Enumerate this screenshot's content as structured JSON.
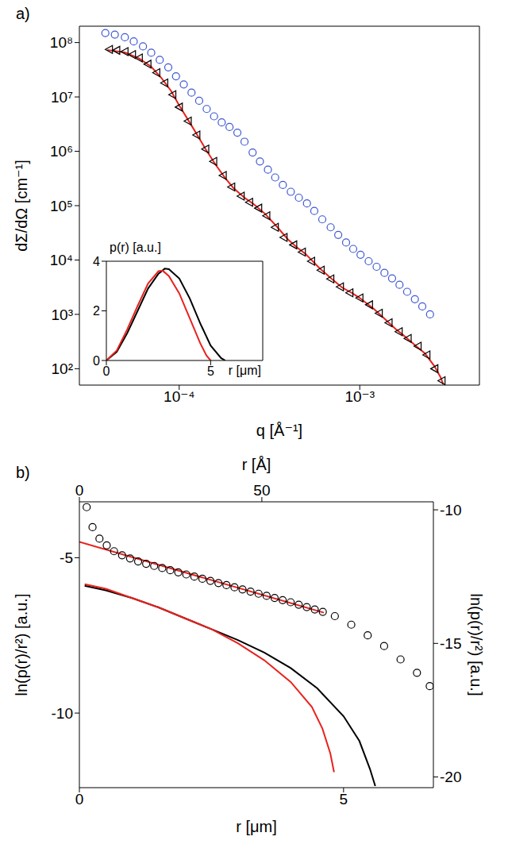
{
  "chart_data": [
    {
      "type": "scatter",
      "title": "a)",
      "xlabel": "q [Å⁻¹]",
      "ylabel": "dΣ/dΩ [cm⁻¹]",
      "log": true,
      "xlim": [
        2.8e-05,
        0.0046
      ],
      "xticks": [
        {
          "value": 0.0001,
          "label": "10⁻⁴"
        },
        {
          "value": 0.001,
          "label": "10⁻³"
        }
      ],
      "ylim": [
        50,
        200000000
      ],
      "yticks": [
        {
          "value": 100,
          "label": "10²"
        },
        {
          "value": 1000,
          "label": "10³"
        },
        {
          "value": 10000,
          "label": "10⁴"
        },
        {
          "value": 100000,
          "label": "10⁵"
        },
        {
          "value": 1000000,
          "label": "10⁶"
        },
        {
          "value": 10000000,
          "label": "10⁷"
        },
        {
          "value": 100000000,
          "label": "10⁸"
        }
      ],
      "series": [
        {
          "type": "scatter",
          "color": "#000000",
          "marker": "triangle-left",
          "x": [
            4.1e-05,
            4.5e-05,
            5e-05,
            5.5e-05,
            6e-05,
            6.7e-05,
            7.5e-05,
            8.3e-05,
            9.2e-05,
            0.0001,
            0.000112,
            0.000125,
            0.00014,
            0.000155,
            0.000175,
            0.000195,
            0.00022,
            0.000245,
            0.000275,
            0.000305,
            0.00034,
            0.00038,
            0.00043,
            0.00048,
            0.00054,
            0.00061,
            0.00069,
            0.00078,
            0.00088,
            0.001,
            0.00113,
            0.00128,
            0.00145,
            0.00165,
            0.00185,
            0.0021,
            0.00235,
            0.0026,
            0.00285
          ],
          "values": [
            75000000,
            72000000,
            68000000,
            60000000,
            52000000,
            40000000,
            28000000,
            18000000,
            11000000,
            6500000,
            3600000,
            2000000,
            1100000,
            650000,
            360000,
            220000,
            150000,
            115000,
            90000,
            65000,
            40000,
            26000,
            19000,
            14000,
            9500,
            6500,
            4500,
            3200,
            2500,
            2000,
            1500,
            1050,
            700,
            480,
            360,
            260,
            180,
            100,
            60
          ]
        },
        {
          "type": "line",
          "color": "#e8221e",
          "line_style": "solid",
          "x": [
            4e-05,
            5e-05,
            6e-05,
            7e-05,
            8e-05,
            9e-05,
            0.0001,
            0.00012,
            0.00014,
            0.00016,
            0.00018,
            0.0002,
            0.00023,
            0.00026,
            0.0003,
            0.00035,
            0.0004,
            0.00045,
            0.0005,
            0.0006,
            0.0007,
            0.0008,
            0.0009,
            0.001,
            0.0012,
            0.0014,
            0.0016,
            0.0018,
            0.002,
            0.0023,
            0.0026,
            0.0028,
            0.0029
          ],
          "values": [
            73000000,
            66000000,
            51000000,
            36000000,
            22000000,
            13000000,
            7000000,
            2600000,
            1100000,
            550000,
            320000,
            210000,
            140000,
            105000,
            70000,
            40000,
            24000,
            17000,
            13000,
            7000,
            4500,
            3100,
            2500,
            2000,
            1250,
            780,
            520,
            380,
            280,
            190,
            110,
            70,
            52
          ]
        },
        {
          "type": "scatter",
          "color": "#3d56d4",
          "marker": "circle",
          "x": [
            3.9e-05,
            4.4e-05,
            5e-05,
            5.6e-05,
            6.3e-05,
            7e-05,
            7.8e-05,
            8.7e-05,
            9.6e-05,
            0.000106,
            0.000117,
            0.000129,
            0.000142,
            0.000156,
            0.000172,
            0.00019,
            0.00021,
            0.00023,
            0.000255,
            0.00028,
            0.00031,
            0.00034,
            0.000375,
            0.000415,
            0.00046,
            0.00051,
            0.00056,
            0.00062,
            0.00069,
            0.00076,
            0.00084,
            0.00092,
            0.00101,
            0.00112,
            0.00124,
            0.00137,
            0.00151,
            0.00166,
            0.00183,
            0.00202,
            0.00222,
            0.00245
          ],
          "values": [
            150000000,
            140000000,
            125000000,
            105000000,
            85000000,
            65000000,
            48000000,
            35000000,
            24000000,
            17000000,
            12000000,
            8500000,
            6000000,
            4400000,
            3400000,
            2800000,
            2200000,
            1500000,
            950000,
            650000,
            460000,
            330000,
            240000,
            180000,
            140000,
            110000,
            80000,
            56000,
            40000,
            29000,
            21000,
            16000,
            12500,
            9500,
            7500,
            5800,
            4600,
            3500,
            2600,
            1900,
            1400,
            1000
          ]
        }
      ]
    },
    {
      "type": "line",
      "xlabel": "r [μm]",
      "ylabel": "p(r) [a.u.]",
      "xlim": [
        0,
        7.5
      ],
      "xticks": [
        0,
        5
      ],
      "ylim": [
        0,
        4
      ],
      "yticks": [
        0,
        2,
        4
      ],
      "series": [
        {
          "type": "line",
          "color": "#000000",
          "line_style": "solid",
          "x": [
            0,
            0.5,
            1,
            1.5,
            2,
            2.5,
            2.8,
            3,
            3.5,
            4,
            4.5,
            5,
            5.5,
            5.7
          ],
          "values": [
            0,
            0.35,
            1.1,
            2.0,
            2.9,
            3.5,
            3.7,
            3.68,
            3.3,
            2.5,
            1.5,
            0.6,
            0.1,
            0
          ]
        },
        {
          "type": "line",
          "color": "#e8221e",
          "line_style": "solid",
          "x": [
            0,
            0.5,
            1,
            1.5,
            2,
            2.5,
            2.7,
            3,
            3.5,
            4,
            4.5,
            4.8,
            5
          ],
          "values": [
            0,
            0.4,
            1.25,
            2.2,
            3.1,
            3.6,
            3.62,
            3.4,
            2.7,
            1.7,
            0.7,
            0.2,
            0
          ]
        }
      ]
    },
    {
      "type": "line",
      "title": "b)",
      "xlabel": "r [μm]",
      "ylabel": "ln(p(r)/r²) [a.u.]",
      "x2label": "r [Å]",
      "y2label": "ln(p(r)/r²) [a.u.]",
      "xlim": [
        0,
        6.7
      ],
      "xticks": [
        0,
        5
      ],
      "ylim": [
        -12.4,
        -3.2
      ],
      "yticks": [
        -5,
        -10
      ],
      "x2lim": [
        0,
        97
      ],
      "x2ticks": [
        0,
        50
      ],
      "y2lim": [
        -20.4,
        -9.7
      ],
      "y2ticks": [
        -10,
        -15,
        -20
      ],
      "series": [
        {
          "type": "line",
          "color": "#000000",
          "line_style": "solid",
          "x": [
            0.1,
            0.5,
            1,
            1.5,
            2,
            2.5,
            3,
            3.5,
            4,
            4.5,
            5,
            5.3,
            5.5,
            5.6
          ],
          "values": [
            -5.9,
            -6.05,
            -6.3,
            -6.6,
            -6.95,
            -7.3,
            -7.65,
            -8.05,
            -8.55,
            -9.2,
            -10.1,
            -10.9,
            -11.8,
            -12.35
          ]
        },
        {
          "type": "line",
          "color": "#e8221e",
          "line_style": "solid",
          "x": [
            0.1,
            0.5,
            1,
            1.5,
            2,
            2.5,
            3,
            3.5,
            4,
            4.4,
            4.6,
            4.75,
            4.82
          ],
          "values": [
            -5.85,
            -6.0,
            -6.3,
            -6.6,
            -6.95,
            -7.3,
            -7.75,
            -8.3,
            -9.0,
            -9.8,
            -10.5,
            -11.3,
            -11.9
          ]
        },
        {
          "type": "scatter",
          "color": "#000000",
          "marker": "circle",
          "axis": "y2",
          "x": [
            2.0,
            3.6,
            5.5,
            7.5,
            9.5,
            11.7,
            13.9,
            16.1,
            18.3,
            20.5,
            22.7,
            24.9,
            27.1,
            29.3,
            31.5,
            33.7,
            35.9,
            38.1,
            40.3,
            42.5,
            44.7,
            46.9,
            49.1,
            51.3,
            53.5,
            55.7,
            57.9,
            60.1,
            62.3,
            64.5,
            66.7,
            70,
            74.5,
            79,
            83.5,
            88,
            92.5,
            96
          ],
          "values": [
            -9.9,
            -10.65,
            -11.08,
            -11.33,
            -11.55,
            -11.7,
            -11.82,
            -11.93,
            -12.02,
            -12.1,
            -12.18,
            -12.26,
            -12.34,
            -12.42,
            -12.5,
            -12.58,
            -12.66,
            -12.74,
            -12.82,
            -12.9,
            -12.98,
            -13.06,
            -13.14,
            -13.22,
            -13.3,
            -13.38,
            -13.46,
            -13.55,
            -13.64,
            -13.73,
            -13.82,
            -13.98,
            -14.3,
            -14.7,
            -15.1,
            -15.6,
            -16.1,
            -16.6
          ]
        },
        {
          "type": "line",
          "color": "#e8221e",
          "line_style": "solid",
          "axis": "y2",
          "x": [
            0,
            67
          ],
          "values": [
            -11.2,
            -13.85
          ]
        }
      ]
    }
  ]
}
